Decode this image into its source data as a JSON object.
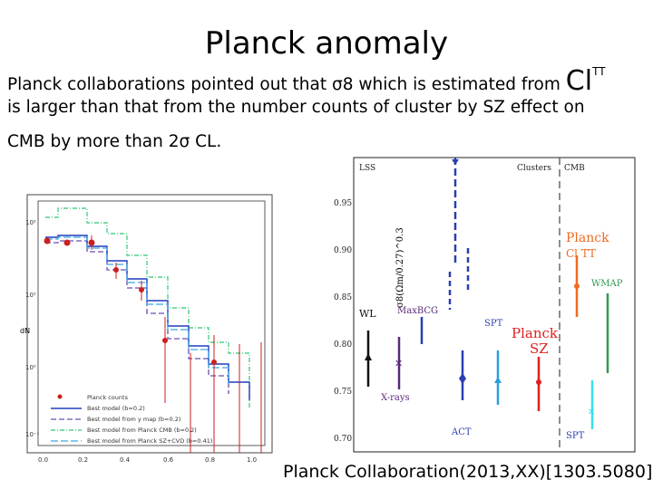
{
  "title": "Planck anomaly",
  "paragraph": {
    "line1": "Planck collaborations pointed out that σ8 which is estimated from",
    "cl_symbol": "Cl",
    "cl_super": "TT",
    "line2": "is larger than that from the number counts of cluster by SZ effect on",
    "line3": "CMB by more than 2σ CL."
  },
  "citation": "Planck Collaboration(2013,XX)[1303.5080]",
  "left_plot": {
    "ylabel": "dN",
    "xticks": [
      "0.0",
      "0.2",
      "0.4",
      "0.6",
      "0.8",
      "1.0"
    ],
    "yticks": [
      "10²",
      "10¹",
      "10⁰",
      "10⁻¹"
    ],
    "legend": [
      "Planck counts",
      "Best model (b=0.2)",
      "Best model from y map (b=0.2)",
      "Best model from Planck CMB (b=0.2)",
      "Best model from Planck SZ+CVD (b=0.41)"
    ],
    "colors": {
      "red": "#cc1f1f",
      "blue": "#1f3fbf",
      "purple": "#6a4fb5",
      "green": "#4fd08a",
      "cyan": "#3ba7e0"
    }
  },
  "right_plot": {
    "ylabel": "σ8(Ωm/0.27)^0.3",
    "yticks": [
      "0.70",
      "0.75",
      "0.80",
      "0.85",
      "0.90",
      "0.95"
    ],
    "labels": {
      "lss": "LSS",
      "clusters": "Clusters",
      "cmb": "CMB",
      "planck_cl": "Planck",
      "cl": "Cl TT",
      "wmap": "WMAP",
      "wl": "WL",
      "maxbcg": "MaxBCG",
      "xrays": "X-rays",
      "spt_top": "SPT",
      "spt_bottom": "SPT",
      "act": "ACT",
      "planck_sz": "Planck",
      "sz": "SZ"
    },
    "colors": {
      "black": "#111111",
      "purple": "#5a2a7a",
      "blue": "#2a3fb0",
      "lightblue": "#2a9fd8",
      "red": "#e02020",
      "orange": "#ef6a1f",
      "green": "#2f9a4f",
      "cyan": "#35e0f0"
    }
  }
}
